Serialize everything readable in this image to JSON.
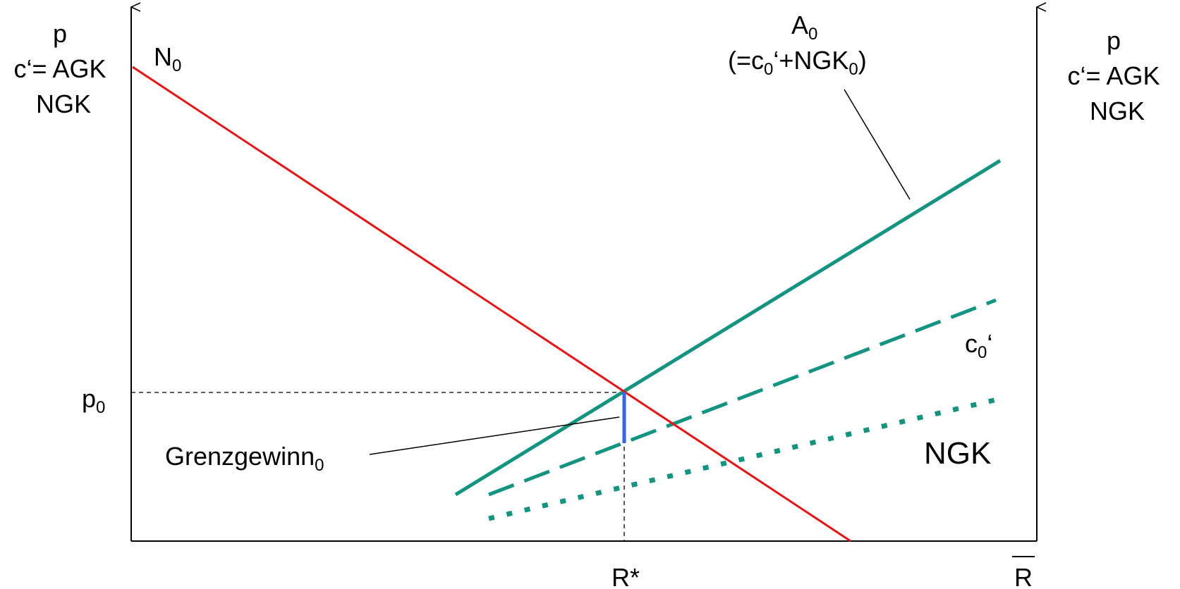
{
  "axes": {
    "left_label": [
      "p",
      "c‘= AGK",
      "NGK"
    ],
    "right_label": [
      "p",
      "c‘= AGK",
      "NGK"
    ],
    "x_tick_rstar": "R*",
    "x_tick_rbar": "R",
    "y_tick": {
      "base": "p",
      "sub": "0"
    }
  },
  "curves": {
    "demand": {
      "base": "N",
      "sub": "0",
      "color": "#ee1111"
    },
    "supply": {
      "base": "A",
      "sub": "0",
      "color": "#119580",
      "note": {
        "p1": "(=c",
        "s1": "0",
        "p2": "‘+NGK",
        "s2": "0",
        "p3": ")"
      }
    },
    "marginal_cost": {
      "base": "c",
      "sub": "0",
      "suffix": "‘",
      "color": "#119580"
    },
    "ngk": {
      "label": "NGK",
      "color": "#119580"
    },
    "marginal_profit": {
      "base": "Grenzgewinn",
      "sub": "0",
      "color": "#3366ee"
    }
  }
}
